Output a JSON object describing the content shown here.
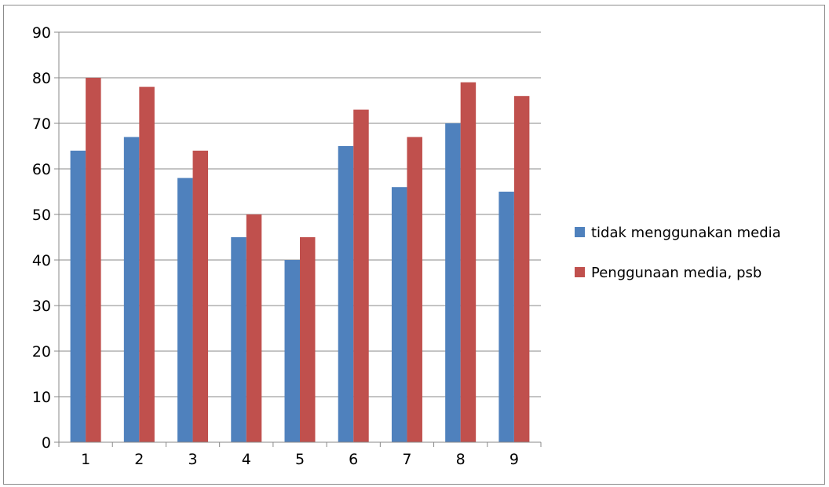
{
  "colors": {
    "series1": "#4f81bd",
    "series2": "#c0504d",
    "grid": "#888888",
    "axis": "#888888",
    "frame": "#8c8c8c"
  },
  "chart_data": {
    "type": "bar",
    "categories": [
      "1",
      "2",
      "3",
      "4",
      "5",
      "6",
      "7",
      "8",
      "9"
    ],
    "series": [
      {
        "name": "tidak menggunakan media",
        "values": [
          64,
          67,
          58,
          45,
          40,
          65,
          56,
          70,
          55
        ]
      },
      {
        "name": "Penggunaan media, psb",
        "values": [
          80,
          78,
          64,
          50,
          45,
          73,
          67,
          79,
          76
        ]
      }
    ],
    "ylim": [
      0,
      90
    ],
    "yticks": [
      0,
      10,
      20,
      30,
      40,
      50,
      60,
      70,
      80,
      90
    ],
    "grid": true,
    "legend": "right",
    "title": "",
    "xlabel": "",
    "ylabel": ""
  }
}
